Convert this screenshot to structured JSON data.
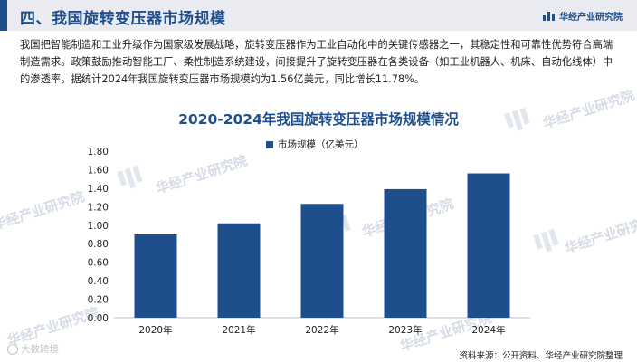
{
  "header": {
    "title": "四、我国旋转变压器市场规模",
    "brand": "华经产业研究院"
  },
  "intro": {
    "paragraph": "我国把智能制造和工业升级作为国家级发展战略，旋转变压器作为工业自动化中的关键传感器之一，其稳定性和可靠性优势符合高端制造需求。政策鼓励推动智能工厂、柔性制造系统建设，间接提升了旋转变压器在各类设备（如工业机器人、机床、自动化线体）中的渗透率。据统计2024年我国旋转变压器市场规模约为1.56亿美元，同比增长11.78%。"
  },
  "watermark": "华经产业研究院",
  "footer": {
    "source": "资料来源：公开资料、华经产业研究院整理",
    "logo": "大数跨境"
  },
  "colors": {
    "accent": "#1f4e8c",
    "bar": "#1f4e8c",
    "header_bg": "#e9ebf1"
  },
  "chart_data": {
    "type": "bar",
    "title": "2020-2024年我国旋转变压器市场规模情况",
    "categories": [
      "2020年",
      "2021年",
      "2022年",
      "2023年",
      "2024年"
    ],
    "series": [
      {
        "name": "市场规模（亿美元）",
        "values": [
          0.9,
          1.02,
          1.23,
          1.39,
          1.56
        ]
      }
    ],
    "ylim": [
      0,
      1.8
    ],
    "yticks": [
      "0.00",
      "0.20",
      "0.40",
      "0.60",
      "0.80",
      "1.00",
      "1.20",
      "1.40",
      "1.60",
      "1.80"
    ],
    "grid": false,
    "legend_position": "top"
  }
}
